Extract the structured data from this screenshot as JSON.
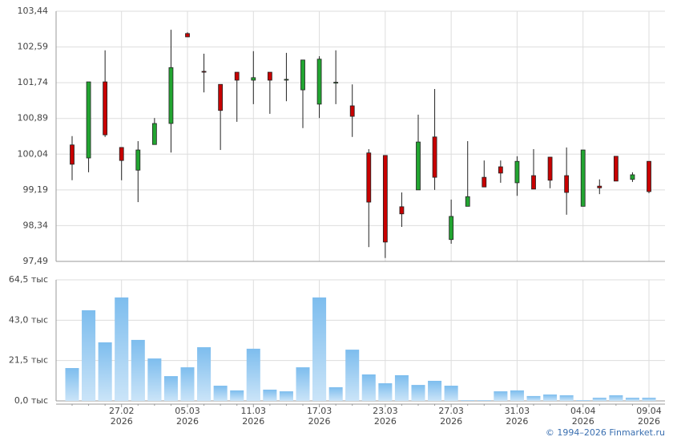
{
  "chart_data": [
    {
      "type": "candlestick",
      "open": [
        100.26,
        99.95,
        101.76,
        100.2,
        99.66,
        100.27,
        100.77,
        102.91,
        102.01,
        101.7,
        101.99,
        101.8,
        101.99,
        101.81,
        101.57,
        101.23,
        101.73,
        101.19,
        100.07,
        100.01,
        98.79,
        99.19,
        100.45,
        98.01,
        98.8,
        99.49,
        99.74,
        99.36,
        99.53,
        99.97,
        99.53,
        98.8,
        99.28,
        99.99,
        99.44,
        99.87
      ],
      "high": [
        100.47,
        101.76,
        102.51,
        100.2,
        100.35,
        100.9,
        103.0,
        102.94,
        102.43,
        101.7,
        101.99,
        102.49,
        101.99,
        102.45,
        102.28,
        102.37,
        102.51,
        101.7,
        100.16,
        100.01,
        99.13,
        100.98,
        101.59,
        98.96,
        100.35,
        99.89,
        99.89,
        99.99,
        100.16,
        99.97,
        100.2,
        100.14,
        99.44,
        99.99,
        99.61,
        99.87
      ],
      "low": [
        99.42,
        99.61,
        100.45,
        99.42,
        98.9,
        100.27,
        100.08,
        102.83,
        101.51,
        100.14,
        100.81,
        101.23,
        101.0,
        101.3,
        100.66,
        100.9,
        101.23,
        100.45,
        97.83,
        97.57,
        98.31,
        99.19,
        99.19,
        97.91,
        98.8,
        99.26,
        99.36,
        99.05,
        99.21,
        99.23,
        98.6,
        98.8,
        99.09,
        99.4,
        99.38,
        99.11
      ],
      "close": [
        99.8,
        101.76,
        100.5,
        99.89,
        100.14,
        100.77,
        102.1,
        102.83,
        101.99,
        101.08,
        101.8,
        101.86,
        101.8,
        101.82,
        102.28,
        102.3,
        101.75,
        100.94,
        98.9,
        97.95,
        98.62,
        100.33,
        99.49,
        98.56,
        99.03,
        99.26,
        99.59,
        99.87,
        99.21,
        99.42,
        99.13,
        100.14,
        99.24,
        99.4,
        99.55,
        99.15
      ],
      "up_color": "#22a531",
      "down_color": "#c80000",
      "ylim": [
        97.49,
        103.44
      ],
      "yticks": [
        {
          "value": 97.49,
          "label": "97,49"
        },
        {
          "value": 98.34,
          "label": "98,34"
        },
        {
          "value": 99.19,
          "label": "99,19"
        },
        {
          "value": 100.04,
          "label": "100,04"
        },
        {
          "value": 100.89,
          "label": "100,89"
        },
        {
          "value": 101.74,
          "label": "101,74"
        },
        {
          "value": 102.59,
          "label": "102,59"
        },
        {
          "value": 103.44,
          "label": "103,44"
        }
      ],
      "grid": true
    },
    {
      "type": "bar",
      "categories": [
        null,
        null,
        null,
        "27.02\n2026",
        null,
        null,
        null,
        "05.03\n2026",
        null,
        null,
        null,
        "11.03\n2026",
        null,
        null,
        null,
        "17.03\n2026",
        null,
        null,
        null,
        "23.03\n2026",
        null,
        null,
        null,
        "27.03\n2026",
        null,
        null,
        null,
        "31.03\n2026",
        null,
        null,
        null,
        "04.04\n2026",
        null,
        null,
        null,
        "09.04\n2026"
      ],
      "values": [
        17.5,
        48.3,
        31.2,
        55.1,
        32.5,
        22.6,
        13.2,
        17.9,
        28.6,
        8.1,
        5.6,
        27.8,
        6.0,
        5.1,
        17.9,
        55.1,
        7.3,
        27.3,
        14.1,
        9.4,
        13.7,
        8.5,
        10.7,
        8.1,
        0.4,
        0.4,
        5.1,
        5.6,
        2.6,
        3.4,
        3.0,
        0.4,
        1.7,
        3.0,
        1.7,
        1.7
      ],
      "color": "#7dbdee",
      "ylim": [
        0,
        64.5
      ],
      "yticks": [
        {
          "value": 0,
          "label": "0,0 тыс"
        },
        {
          "value": 21.5,
          "label": "21,5 тыс"
        },
        {
          "value": 43,
          "label": "43,0 тыс"
        },
        {
          "value": 64.5,
          "label": "64,5 тыс"
        }
      ],
      "grid": true
    }
  ],
  "footer": "© 1994–2026 Finmarket.ru"
}
